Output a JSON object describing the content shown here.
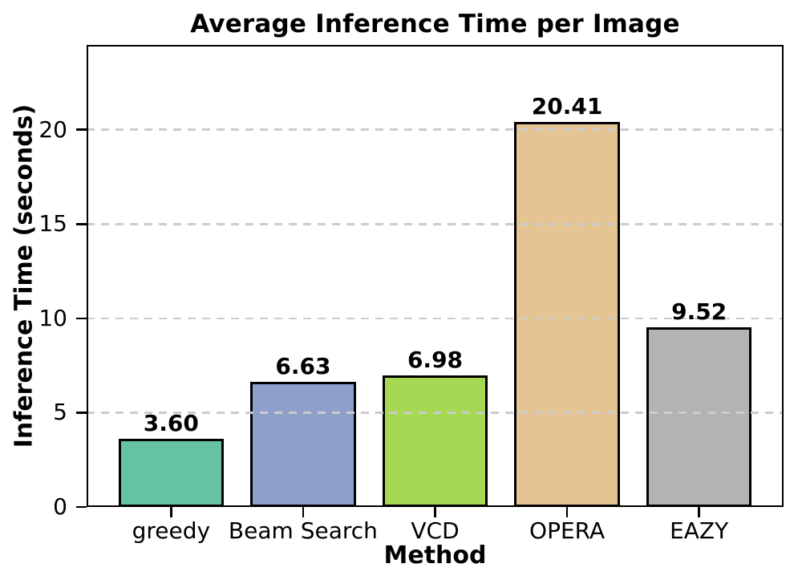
{
  "chart_data": {
    "type": "bar",
    "title": "Average Inference Time per Image",
    "xlabel": "Method",
    "ylabel": "Inference Time (seconds)",
    "categories": [
      "greedy",
      "Beam Search",
      "VCD",
      "OPERA",
      "EAZY"
    ],
    "values": [
      3.6,
      6.63,
      6.98,
      20.41,
      9.52
    ],
    "value_labels": [
      "3.60",
      "6.63",
      "6.98",
      "20.41",
      "9.52"
    ],
    "bar_colors": [
      "#66c2a5",
      "#8da0cb",
      "#a6d854",
      "#e5c494",
      "#b3b3b3"
    ],
    "bar_edge_color": "#000000",
    "yticks": [
      0,
      5,
      10,
      15,
      20
    ],
    "ylim": [
      0,
      24.5
    ],
    "grid": {
      "axis": "y",
      "style": "dashed",
      "color": "#cccccc",
      "over_bars": true
    },
    "legend": "none",
    "background_color": "#ffffff",
    "text_color": "#000000"
  }
}
